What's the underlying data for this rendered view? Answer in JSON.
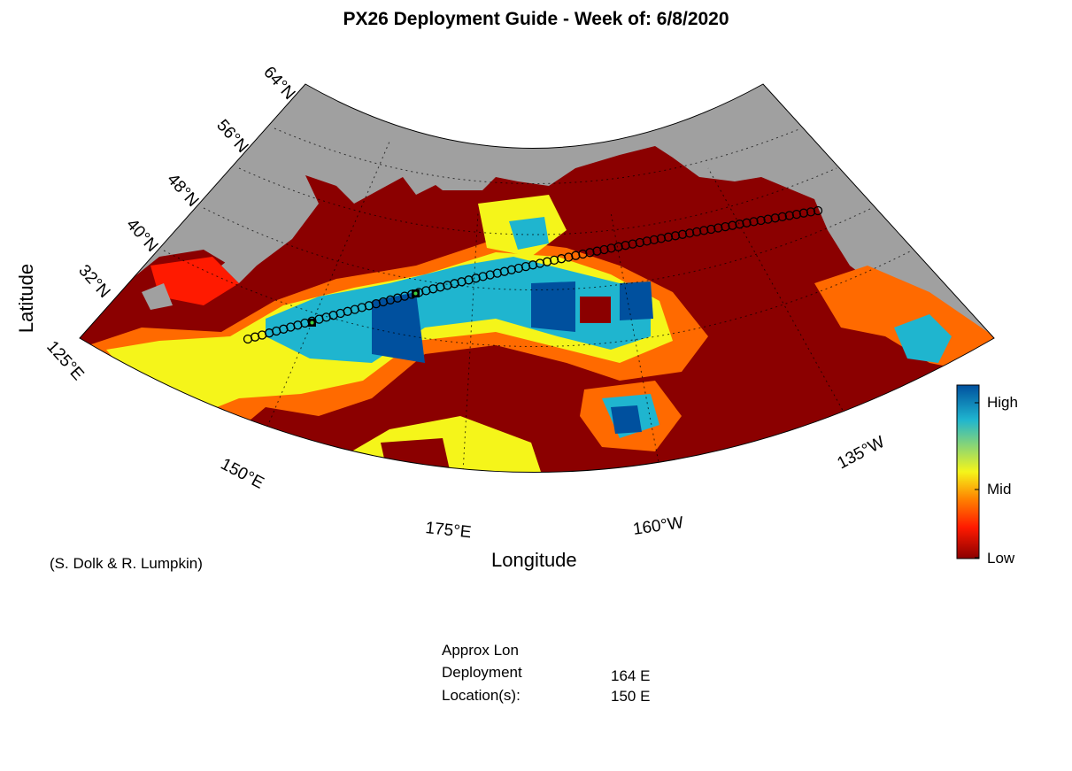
{
  "title": "PX26 Deployment Guide - Week of: 6/8/2020",
  "axes": {
    "xlabel": "Longitude",
    "ylabel": "Latitude",
    "lat_ticks": [
      "32°N",
      "40°N",
      "48°N",
      "56°N",
      "64°N"
    ],
    "lon_ticks": [
      "125°E",
      "150°E",
      "175°E",
      "160°W",
      "135°W"
    ]
  },
  "colorbar": {
    "labels": [
      "High",
      "Mid",
      "Low"
    ],
    "colors": [
      "#00509e",
      "#1fb5cf",
      "#f5f51a",
      "#ff8000",
      "#ff1a00",
      "#8b0000"
    ]
  },
  "credit": "(S. Dolk & R. Lumpkin)",
  "deployment": {
    "header": "Approx Lon",
    "label_line1": "Deployment",
    "label_line2": "Location(s):",
    "locations": [
      "164 E",
      "150 E"
    ]
  },
  "colors": {
    "land": "#a0a0a0",
    "ocean_low": "#8b0000",
    "track": "#000000",
    "deploy_marker": "#3fd23f"
  }
}
